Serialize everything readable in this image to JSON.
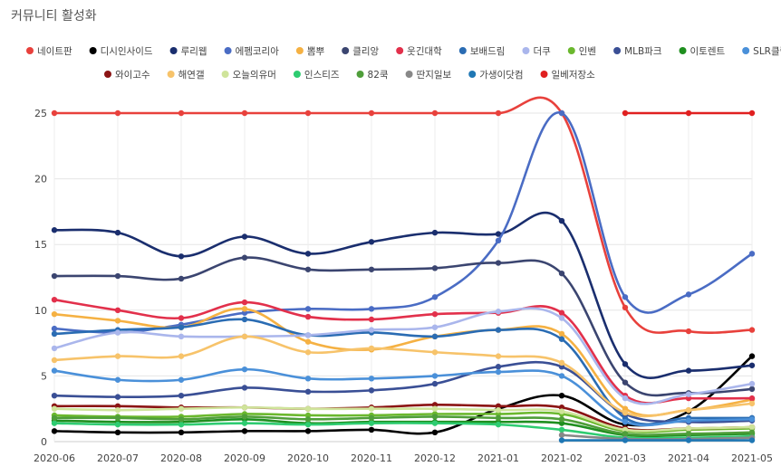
{
  "chart_data": {
    "type": "line",
    "title": "커뮤니티 활성화",
    "xlabel": "",
    "ylabel": "",
    "ylim": [
      0,
      25
    ],
    "yticks": [
      0,
      5,
      10,
      15,
      20,
      25
    ],
    "grid": true,
    "legend_position": "top",
    "categories": [
      "2020-06",
      "2020-07",
      "2020-08",
      "2020-09",
      "2020-10",
      "2020-11",
      "2020-12",
      "2021-01",
      "2021-02",
      "2021-03",
      "2021-04",
      "2021-05"
    ],
    "series": [
      {
        "name": "네이트판",
        "color": "#e8413c",
        "values": [
          25,
          25,
          25,
          25,
          25,
          25,
          25,
          25,
          25,
          10.2,
          8.4,
          8.5
        ]
      },
      {
        "name": "디시인사이드",
        "color": "#000000",
        "values": [
          0.8,
          0.7,
          0.7,
          0.8,
          0.8,
          0.9,
          0.7,
          2.5,
          3.5,
          1.3,
          2.3,
          6.5
        ]
      },
      {
        "name": "루리웹",
        "color": "#1a2e6e",
        "values": [
          16.1,
          15.9,
          14.1,
          15.6,
          14.3,
          15.2,
          15.9,
          15.8,
          16.8,
          5.9,
          5.4,
          5.8
        ]
      },
      {
        "name": "에펨코리아",
        "color": "#4a6cc4",
        "values": [
          8.6,
          8.3,
          8.9,
          9.8,
          10.1,
          10.1,
          11,
          15.3,
          25,
          11,
          11.2,
          14.3
        ]
      },
      {
        "name": "뽐뿌",
        "color": "#f5b143",
        "values": [
          9.7,
          9.2,
          8.7,
          10.1,
          7.6,
          7.0,
          8.0,
          8.5,
          8.2,
          2.5,
          2.4,
          3.2
        ]
      },
      {
        "name": "클리앙",
        "color": "#3b4570",
        "values": [
          12.6,
          12.6,
          12.4,
          14.0,
          13.1,
          13.1,
          13.2,
          13.6,
          12.8,
          4.5,
          3.7,
          4.0
        ]
      },
      {
        "name": "웃긴대학",
        "color": "#e2304b",
        "values": [
          10.8,
          10.0,
          9.4,
          10.6,
          9.5,
          9.3,
          9.7,
          9.8,
          9.8,
          3.5,
          3.3,
          3.3
        ]
      },
      {
        "name": "보배드림",
        "color": "#2a6cb3",
        "values": [
          8.2,
          8.5,
          8.7,
          9.3,
          8.1,
          8.3,
          8.0,
          8.5,
          7.8,
          1.8,
          1.8,
          1.8
        ]
      },
      {
        "name": "더쿠",
        "color": "#aab6ec",
        "values": [
          7.1,
          8.3,
          8.0,
          8.0,
          8.1,
          8.5,
          8.7,
          9.9,
          9.4,
          3.3,
          3.6,
          4.4
        ]
      },
      {
        "name": "인벤",
        "color": "#6bb82e",
        "values": [
          2.0,
          1.9,
          1.9,
          2.1,
          2.0,
          2.0,
          2.1,
          2.1,
          2.1,
          0.8,
          0.9,
          1.0
        ]
      },
      {
        "name": "MLB파크",
        "color": "#3a4f95",
        "values": [
          3.5,
          3.4,
          3.5,
          4.1,
          3.8,
          3.9,
          4.4,
          5.7,
          5.7,
          2.1,
          1.5,
          1.6
        ]
      },
      {
        "name": "이토렌트",
        "color": "#1f8f1f",
        "values": [
          1.6,
          1.5,
          1.5,
          1.7,
          1.4,
          1.5,
          1.5,
          1.5,
          1.4,
          0.5,
          0.5,
          0.6
        ]
      },
      {
        "name": "SLR클럽",
        "color": "#4a90d9",
        "values": [
          5.4,
          4.7,
          4.7,
          5.5,
          4.8,
          4.8,
          5.0,
          5.3,
          5.0,
          1.5,
          1.6,
          1.7
        ]
      },
      {
        "name": "와이고수",
        "color": "#8b1414",
        "values": [
          2.7,
          2.7,
          2.6,
          2.6,
          2.5,
          2.6,
          2.8,
          2.7,
          2.6,
          1.0,
          1.0,
          1.1
        ]
      },
      {
        "name": "해연갤",
        "color": "#f7c36a",
        "values": [
          6.2,
          6.5,
          6.5,
          8.0,
          6.8,
          7.1,
          6.8,
          6.5,
          6.0,
          2.2,
          2.4,
          2.9
        ]
      },
      {
        "name": "오늘의유머",
        "color": "#cfe49a",
        "values": [
          2.5,
          2.4,
          2.5,
          2.6,
          2.5,
          2.5,
          2.5,
          2.4,
          2.3,
          0.9,
          1.0,
          1.1
        ]
      },
      {
        "name": "인스티즈",
        "color": "#2ecc71",
        "values": [
          1.4,
          1.3,
          1.3,
          1.4,
          1.3,
          1.4,
          1.4,
          1.3,
          0.9,
          0.3,
          0.3,
          0.4
        ]
      },
      {
        "name": "82쿡",
        "color": "#4f9e3a",
        "values": [
          1.8,
          1.8,
          1.7,
          1.9,
          1.7,
          1.8,
          1.9,
          1.8,
          1.7,
          0.6,
          0.6,
          0.7
        ]
      },
      {
        "name": "딴지일보",
        "color": "#888888",
        "values": [
          null,
          null,
          null,
          null,
          null,
          null,
          null,
          null,
          0.5,
          0.2,
          0.2,
          0.3
        ]
      },
      {
        "name": "가생이닷컴",
        "color": "#1f77b4",
        "values": [
          null,
          null,
          null,
          null,
          null,
          null,
          null,
          null,
          0.1,
          0.1,
          0.1,
          0.1
        ]
      },
      {
        "name": "일베저장소",
        "color": "#e02020",
        "values": [
          null,
          null,
          null,
          null,
          null,
          null,
          null,
          null,
          null,
          25,
          25,
          25
        ]
      }
    ]
  }
}
